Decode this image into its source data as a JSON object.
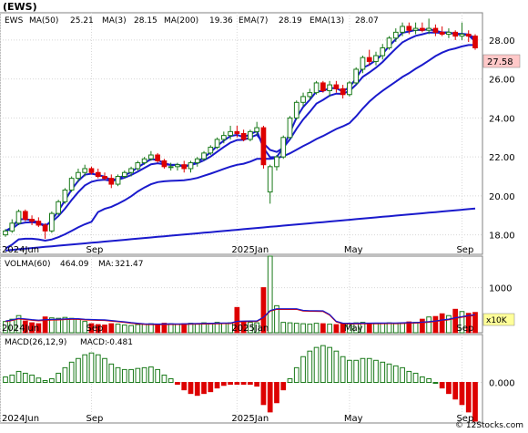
{
  "header": {
    "symbol": "(EWS)"
  },
  "watermark": "© 12Stocks.com",
  "colors": {
    "up": "#1a7a1a",
    "down": "#dd0000",
    "ma": "#1a1acc",
    "grid": "#d8d8d8",
    "frame": "#808080",
    "lastPriceBg": "#ffc8c8",
    "unitBg": "#ffff99",
    "volMA": "#dd0000"
  },
  "price_panel": {
    "legend": [
      {
        "label": "EWS",
        "value": ""
      },
      {
        "label": "MA(50)",
        "value": "25.21"
      },
      {
        "label": "MA(3)",
        "value": "28.15"
      },
      {
        "label": "MA(200)",
        "value": "19.36"
      },
      {
        "label": "EMA(7)",
        "value": "28.19"
      },
      {
        "label": "EMA(13)",
        "value": "28.07"
      }
    ],
    "last_price": "27.58"
  },
  "volume_panel": {
    "legend": [
      {
        "label": "VOLMA(60)",
        "value": "464.09"
      },
      {
        "label": "MA:",
        "value": "321.47"
      }
    ],
    "unit": "x10K"
  },
  "macd_panel": {
    "legend": [
      {
        "label": "MACD(26,12,9)",
        "value": ""
      },
      {
        "label": "MACD:",
        "value": "-0.481"
      }
    ]
  },
  "chart_data": {
    "type": "candlestick",
    "x_labels": [
      "2024Jun",
      "Sep",
      "2025Jan",
      "May",
      "Sep"
    ],
    "price_ticks": [
      "18.00",
      "20.00",
      "22.00",
      "24.00",
      "26.00",
      "28.00"
    ],
    "price_ylim": [
      17.0,
      29.4
    ],
    "volume_ticks": [
      "1000"
    ],
    "volume_ylim": [
      0,
      1700
    ],
    "macd_ticks": [
      "0.000"
    ],
    "macd_ylim": [
      -1.1,
      1.3
    ],
    "weeks": [
      {
        "o": 18.0,
        "h": 18.3,
        "l": 17.9,
        "c": 18.2,
        "v": 250,
        "m": 0.15
      },
      {
        "o": 18.2,
        "h": 18.8,
        "l": 18.1,
        "c": 18.6,
        "v": 300,
        "m": 0.2
      },
      {
        "o": 18.6,
        "h": 19.3,
        "l": 18.5,
        "c": 19.2,
        "v": 380,
        "m": 0.3
      },
      {
        "o": 19.2,
        "h": 19.3,
        "l": 18.7,
        "c": 18.8,
        "v": 260,
        "m": 0.25
      },
      {
        "o": 18.8,
        "h": 19.0,
        "l": 18.5,
        "c": 18.7,
        "v": 220,
        "m": 0.2
      },
      {
        "o": 18.7,
        "h": 18.9,
        "l": 18.4,
        "c": 18.5,
        "v": 200,
        "m": 0.12
      },
      {
        "o": 18.5,
        "h": 18.6,
        "l": 17.8,
        "c": 18.2,
        "v": 350,
        "m": 0.05
      },
      {
        "o": 18.2,
        "h": 19.2,
        "l": 18.1,
        "c": 19.1,
        "v": 330,
        "m": 0.1
      },
      {
        "o": 19.1,
        "h": 19.8,
        "l": 19.0,
        "c": 19.7,
        "v": 320,
        "m": 0.25
      },
      {
        "o": 19.7,
        "h": 20.4,
        "l": 19.6,
        "c": 20.3,
        "v": 340,
        "m": 0.4
      },
      {
        "o": 20.3,
        "h": 21.0,
        "l": 20.2,
        "c": 20.9,
        "v": 320,
        "m": 0.55
      },
      {
        "o": 20.9,
        "h": 21.4,
        "l": 20.7,
        "c": 21.2,
        "v": 300,
        "m": 0.65
      },
      {
        "o": 21.2,
        "h": 21.6,
        "l": 21.0,
        "c": 21.4,
        "v": 250,
        "m": 0.75
      },
      {
        "o": 21.4,
        "h": 21.5,
        "l": 21.1,
        "c": 21.2,
        "v": 200,
        "m": 0.8
      },
      {
        "o": 21.2,
        "h": 21.4,
        "l": 20.9,
        "c": 21.0,
        "v": 180,
        "m": 0.75
      },
      {
        "o": 21.0,
        "h": 21.2,
        "l": 20.8,
        "c": 20.9,
        "v": 170,
        "m": 0.65
      },
      {
        "o": 20.9,
        "h": 21.1,
        "l": 20.4,
        "c": 20.6,
        "v": 200,
        "m": 0.5
      },
      {
        "o": 20.6,
        "h": 21.1,
        "l": 20.5,
        "c": 21.0,
        "v": 190,
        "m": 0.4
      },
      {
        "o": 21.0,
        "h": 21.3,
        "l": 20.9,
        "c": 21.2,
        "v": 170,
        "m": 0.35
      },
      {
        "o": 21.2,
        "h": 21.5,
        "l": 21.0,
        "c": 21.4,
        "v": 160,
        "m": 0.35
      },
      {
        "o": 21.4,
        "h": 21.8,
        "l": 21.3,
        "c": 21.7,
        "v": 180,
        "m": 0.38
      },
      {
        "o": 21.7,
        "h": 22.0,
        "l": 21.6,
        "c": 21.9,
        "v": 190,
        "m": 0.4
      },
      {
        "o": 21.9,
        "h": 22.3,
        "l": 21.8,
        "c": 22.1,
        "v": 200,
        "m": 0.42
      },
      {
        "o": 22.1,
        "h": 22.2,
        "l": 21.7,
        "c": 21.8,
        "v": 180,
        "m": 0.35
      },
      {
        "o": 21.8,
        "h": 21.9,
        "l": 21.4,
        "c": 21.5,
        "v": 210,
        "m": 0.2
      },
      {
        "o": 21.5,
        "h": 21.7,
        "l": 21.3,
        "c": 21.5,
        "v": 200,
        "m": 0.1
      },
      {
        "o": 21.5,
        "h": 21.7,
        "l": 21.3,
        "c": 21.6,
        "v": 190,
        "m": -0.05
      },
      {
        "o": 21.6,
        "h": 21.8,
        "l": 21.2,
        "c": 21.4,
        "v": 200,
        "m": -0.2
      },
      {
        "o": 21.4,
        "h": 21.8,
        "l": 21.2,
        "c": 21.7,
        "v": 210,
        "m": -0.3
      },
      {
        "o": 21.7,
        "h": 22.0,
        "l": 21.5,
        "c": 21.9,
        "v": 190,
        "m": -0.35
      },
      {
        "o": 21.9,
        "h": 22.3,
        "l": 21.8,
        "c": 22.2,
        "v": 220,
        "m": -0.3
      },
      {
        "o": 22.2,
        "h": 22.6,
        "l": 22.1,
        "c": 22.5,
        "v": 200,
        "m": -0.25
      },
      {
        "o": 22.5,
        "h": 23.0,
        "l": 22.4,
        "c": 22.9,
        "v": 230,
        "m": -0.15
      },
      {
        "o": 22.9,
        "h": 23.3,
        "l": 22.7,
        "c": 23.1,
        "v": 210,
        "m": -0.08
      },
      {
        "o": 23.1,
        "h": 23.6,
        "l": 22.9,
        "c": 23.3,
        "v": 220,
        "m": -0.05
      },
      {
        "o": 23.3,
        "h": 23.6,
        "l": 23.0,
        "c": 23.2,
        "v": 560,
        "m": -0.05
      },
      {
        "o": 23.2,
        "h": 23.4,
        "l": 22.8,
        "c": 22.9,
        "v": 250,
        "m": -0.05
      },
      {
        "o": 22.9,
        "h": 23.4,
        "l": 22.8,
        "c": 23.3,
        "v": 230,
        "m": -0.05
      },
      {
        "o": 23.3,
        "h": 23.8,
        "l": 23.1,
        "c": 23.5,
        "v": 220,
        "m": -0.1
      },
      {
        "o": 23.5,
        "h": 23.6,
        "l": 21.4,
        "c": 21.6,
        "v": 1000,
        "m": -0.6
      },
      {
        "o": 20.2,
        "h": 21.6,
        "l": 19.6,
        "c": 21.5,
        "v": 1700,
        "m": -0.8
      },
      {
        "o": 21.5,
        "h": 22.1,
        "l": 21.3,
        "c": 22.0,
        "v": 600,
        "m": -0.55
      },
      {
        "o": 22.0,
        "h": 23.1,
        "l": 21.9,
        "c": 23.0,
        "v": 230,
        "m": -0.2
      },
      {
        "o": 23.0,
        "h": 24.1,
        "l": 22.9,
        "c": 24.0,
        "v": 220,
        "m": 0.1
      },
      {
        "o": 24.0,
        "h": 24.9,
        "l": 23.9,
        "c": 24.8,
        "v": 210,
        "m": 0.4
      },
      {
        "o": 24.8,
        "h": 25.3,
        "l": 24.6,
        "c": 25.1,
        "v": 200,
        "m": 0.7
      },
      {
        "o": 25.1,
        "h": 25.5,
        "l": 24.9,
        "c": 25.3,
        "v": 190,
        "m": 0.85
      },
      {
        "o": 25.3,
        "h": 25.9,
        "l": 25.2,
        "c": 25.8,
        "v": 210,
        "m": 0.95
      },
      {
        "o": 25.8,
        "h": 25.9,
        "l": 25.3,
        "c": 25.4,
        "v": 200,
        "m": 1.0
      },
      {
        "o": 25.4,
        "h": 25.9,
        "l": 25.1,
        "c": 25.7,
        "v": 190,
        "m": 0.95
      },
      {
        "o": 25.7,
        "h": 25.9,
        "l": 25.3,
        "c": 25.5,
        "v": 180,
        "m": 0.85
      },
      {
        "o": 25.5,
        "h": 25.7,
        "l": 25.0,
        "c": 25.2,
        "v": 200,
        "m": 0.7
      },
      {
        "o": 25.2,
        "h": 25.9,
        "l": 25.1,
        "c": 25.8,
        "v": 200,
        "m": 0.6
      },
      {
        "o": 25.8,
        "h": 26.6,
        "l": 25.7,
        "c": 26.5,
        "v": 220,
        "m": 0.6
      },
      {
        "o": 26.5,
        "h": 27.2,
        "l": 26.3,
        "c": 27.1,
        "v": 230,
        "m": 0.65
      },
      {
        "o": 27.1,
        "h": 27.5,
        "l": 26.7,
        "c": 26.9,
        "v": 210,
        "m": 0.65
      },
      {
        "o": 26.9,
        "h": 27.4,
        "l": 26.7,
        "c": 27.2,
        "v": 200,
        "m": 0.6
      },
      {
        "o": 27.2,
        "h": 27.8,
        "l": 27.0,
        "c": 27.6,
        "v": 210,
        "m": 0.55
      },
      {
        "o": 27.6,
        "h": 28.2,
        "l": 27.5,
        "c": 28.1,
        "v": 220,
        "m": 0.5
      },
      {
        "o": 28.1,
        "h": 28.6,
        "l": 27.9,
        "c": 28.4,
        "v": 200,
        "m": 0.45
      },
      {
        "o": 28.4,
        "h": 28.9,
        "l": 28.2,
        "c": 28.7,
        "v": 210,
        "m": 0.4
      },
      {
        "o": 28.7,
        "h": 28.9,
        "l": 28.3,
        "c": 28.5,
        "v": 240,
        "m": 0.3
      },
      {
        "o": 28.5,
        "h": 28.9,
        "l": 28.3,
        "c": 28.6,
        "v": 230,
        "m": 0.25
      },
      {
        "o": 28.6,
        "h": 28.9,
        "l": 28.4,
        "c": 28.5,
        "v": 300,
        "m": 0.15
      },
      {
        "o": 28.5,
        "h": 29.1,
        "l": 28.3,
        "c": 28.6,
        "v": 350,
        "m": 0.1
      },
      {
        "o": 28.6,
        "h": 28.8,
        "l": 28.2,
        "c": 28.4,
        "v": 360,
        "m": 0.0
      },
      {
        "o": 28.4,
        "h": 28.7,
        "l": 28.2,
        "c": 28.3,
        "v": 420,
        "m": -0.15
      },
      {
        "o": 28.3,
        "h": 28.6,
        "l": 28.1,
        "c": 28.4,
        "v": 380,
        "m": -0.3
      },
      {
        "o": 28.4,
        "h": 28.5,
        "l": 28.0,
        "c": 28.2,
        "v": 520,
        "m": -0.45
      },
      {
        "o": 28.2,
        "h": 28.9,
        "l": 28.0,
        "c": 28.3,
        "v": 470,
        "m": -0.6
      },
      {
        "o": 28.3,
        "h": 28.5,
        "l": 27.9,
        "c": 28.2,
        "v": 430,
        "m": -0.8
      },
      {
        "o": 28.2,
        "h": 28.3,
        "l": 27.5,
        "c": 27.6,
        "v": 450,
        "m": -1.05
      }
    ]
  }
}
